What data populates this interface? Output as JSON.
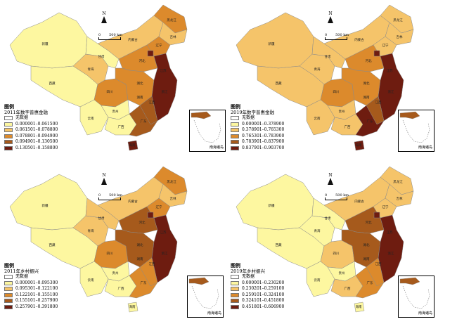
{
  "common": {
    "north_label": "N",
    "scale_zero": "0",
    "scale_end": "500 km",
    "legend_title": "图例",
    "no_data": "无数据",
    "inset_caption": "南海诸岛"
  },
  "colors": {
    "no_data": "#ffffff",
    "class1": "#fdf7a0",
    "class2": "#f5c46a",
    "class3": "#dc8a2c",
    "class4": "#a65a1c",
    "class5": "#6e1c10",
    "outline": "#8a8a8a"
  },
  "panels": [
    {
      "id": "p1",
      "legend_subtitle": "2011年数字普惠金融",
      "no_data": "无数据",
      "classes": [
        "0.000001–0.061500",
        "0.061501–0.078800",
        "0.078801–0.094900",
        "0.094901–0.130500",
        "0.130501–0.158800"
      ],
      "fills": {
        "xinjiang": 1,
        "xizang": 1,
        "qinghai": 2,
        "gansu": 1,
        "neimenggu": 2,
        "heilongjiang": 3,
        "jilin": 2,
        "liaoning": 3,
        "sichuan": 3,
        "yunnan": 1,
        "guizhou": 1,
        "guangxi": 1,
        "guangdong": 4,
        "hainan": 5,
        "south": 4,
        "central": 3,
        "east": 5,
        "north": 3,
        "beijing": 5
      }
    },
    {
      "id": "p2",
      "legend_subtitle": "2019年数字普惠金融",
      "no_data": "无数据",
      "classes": [
        "0.000001–0.378900",
        "0.378901–0.765300",
        "0.765301–0.783900",
        "0.783901–0.837900",
        "0.837901–0.903700"
      ],
      "fills": {
        "xinjiang": 2,
        "xizang": 2,
        "qinghai": 2,
        "gansu": 2,
        "neimenggu": 2,
        "heilongjiang": 2,
        "jilin": 2,
        "liaoning": 2,
        "sichuan": 3,
        "yunnan": 2,
        "guizhou": 2,
        "guangxi": 2,
        "guangdong": 5,
        "hainan": 5,
        "south": 4,
        "central": 3,
        "east": 5,
        "north": 3,
        "beijing": 5
      }
    },
    {
      "id": "p3",
      "legend_subtitle": "2011年乡村振兴",
      "no_data": "无数据",
      "classes": [
        "0.000001–0.095300",
        "0.095301–0.122100",
        "0.122101–0.155100",
        "0.155101–0.257900",
        "0.257901–0.391800"
      ],
      "fills": {
        "xinjiang": 1,
        "xizang": 1,
        "qinghai": 2,
        "gansu": 2,
        "neimenggu": 2,
        "heilongjiang": 3,
        "jilin": 2,
        "liaoning": 3,
        "sichuan": 3,
        "yunnan": 1,
        "guizhou": 1,
        "guangxi": 1,
        "guangdong": 3,
        "hainan": 1,
        "south": 3,
        "central": 4,
        "east": 5,
        "north": 4,
        "beijing": 5
      }
    },
    {
      "id": "p4",
      "legend_subtitle": "2019年乡村振兴",
      "no_data": "无数据",
      "classes": [
        "0.000001–0.230200",
        "0.230201–0.259100",
        "0.259101–0.324100",
        "0.324101–0.451800",
        "0.451801–0.606900"
      ],
      "fills": {
        "xinjiang": 1,
        "xizang": 1,
        "qinghai": 1,
        "gansu": 1,
        "neimenggu": 2,
        "heilongjiang": 2,
        "jilin": 2,
        "liaoning": 2,
        "sichuan": 2,
        "yunnan": 1,
        "guizhou": 1,
        "guangxi": 2,
        "guangdong": 3,
        "hainan": 1,
        "south": 3,
        "central": 4,
        "east": 5,
        "north": 4,
        "beijing": 5
      }
    }
  ]
}
